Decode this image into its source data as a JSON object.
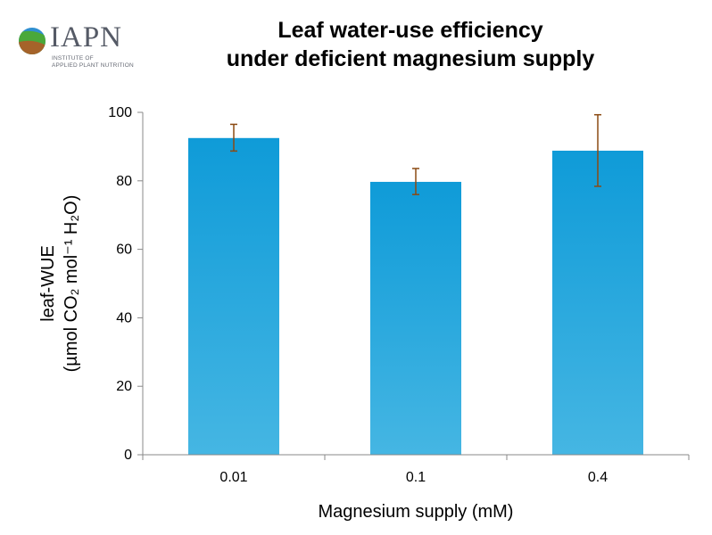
{
  "logo": {
    "name": "IAPN",
    "subtitle_line1": "INSTITUTE OF",
    "subtitle_line2": "APPLIED PLANT NUTRITION"
  },
  "chart_data": {
    "type": "bar",
    "title_line1": "Leaf water-use efficiency",
    "title_line2": "under deficient magnesium supply",
    "categories": [
      "0.01",
      "0.1",
      "0.4"
    ],
    "values": [
      92.5,
      79.7,
      88.8
    ],
    "error_low": [
      88.7,
      76.0,
      78.4
    ],
    "error_high": [
      96.5,
      83.6,
      99.3
    ],
    "xlabel": "Magnesium supply (mM)",
    "ylabel_line1": "leaf-WUE",
    "ylabel_line2": "(µmol CO₂ mol⁻¹ H₂O)",
    "ylim": [
      0,
      100
    ],
    "yticks": [
      0,
      20,
      40,
      60,
      80,
      100
    ],
    "bar_color_top": "#0f9bd8",
    "bar_color_bottom": "#45b6e3",
    "error_bar_color": "#8b4a12",
    "grid": false,
    "legend": "none"
  }
}
